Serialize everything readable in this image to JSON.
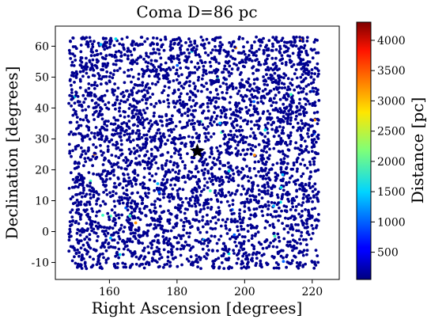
{
  "chart_data": {
    "type": "scatter",
    "title": "Coma  D=86 pc",
    "xlabel": "Right Ascension [degrees]",
    "ylabel": "Declination [degrees]",
    "xlim": [
      144,
      228
    ],
    "ylim": [
      -15.5,
      66.5
    ],
    "xticks": [
      "160",
      "180",
      "200",
      "220"
    ],
    "yticks": [
      "-10",
      "0",
      "10",
      "20",
      "30",
      "40",
      "50",
      "60"
    ],
    "points_region": {
      "ra": [
        148,
        222
      ],
      "dec": [
        -12,
        63
      ]
    },
    "point_count": 3800,
    "marker_color": "#000090",
    "cluster_center": {
      "ra": 186,
      "dec": 26
    },
    "colorbar": {
      "label": "Distance [pc]",
      "range": [
        50,
        4300
      ],
      "ticks": [
        "500",
        "1000",
        "1500",
        "2000",
        "2500",
        "3000",
        "3500",
        "4000"
      ],
      "colormap": "jet"
    }
  }
}
